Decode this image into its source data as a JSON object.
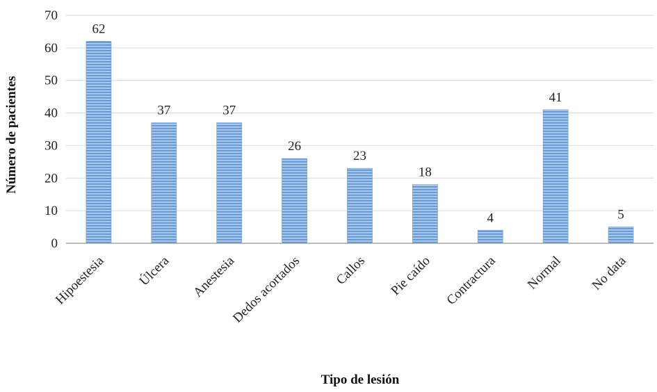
{
  "chart_data": {
    "type": "bar",
    "categories": [
      "Hipoestesia",
      "Úlcera",
      "Anestesia",
      "Dedos acortados",
      "Callos",
      "Pie caído",
      "Contractura",
      "Normal",
      "No data"
    ],
    "values": [
      62,
      37,
      37,
      26,
      23,
      18,
      4,
      41,
      5
    ],
    "data_labels": [
      "62",
      "37",
      "37",
      "26",
      "23",
      "18",
      "4",
      "41",
      "5"
    ],
    "xlabel": "Tipo de lesión",
    "ylabel": "Número de pacientes",
    "ylim": [
      0,
      70
    ],
    "yticks": [
      "0",
      "10",
      "20",
      "30",
      "40",
      "50",
      "60",
      "70"
    ],
    "grid": true,
    "legend": "none",
    "colors": {
      "bar": "#8DB4E2",
      "bar_stripe": "#4F81BD",
      "grid": "#D9D9D9",
      "axis": "#A6A6A6"
    }
  }
}
